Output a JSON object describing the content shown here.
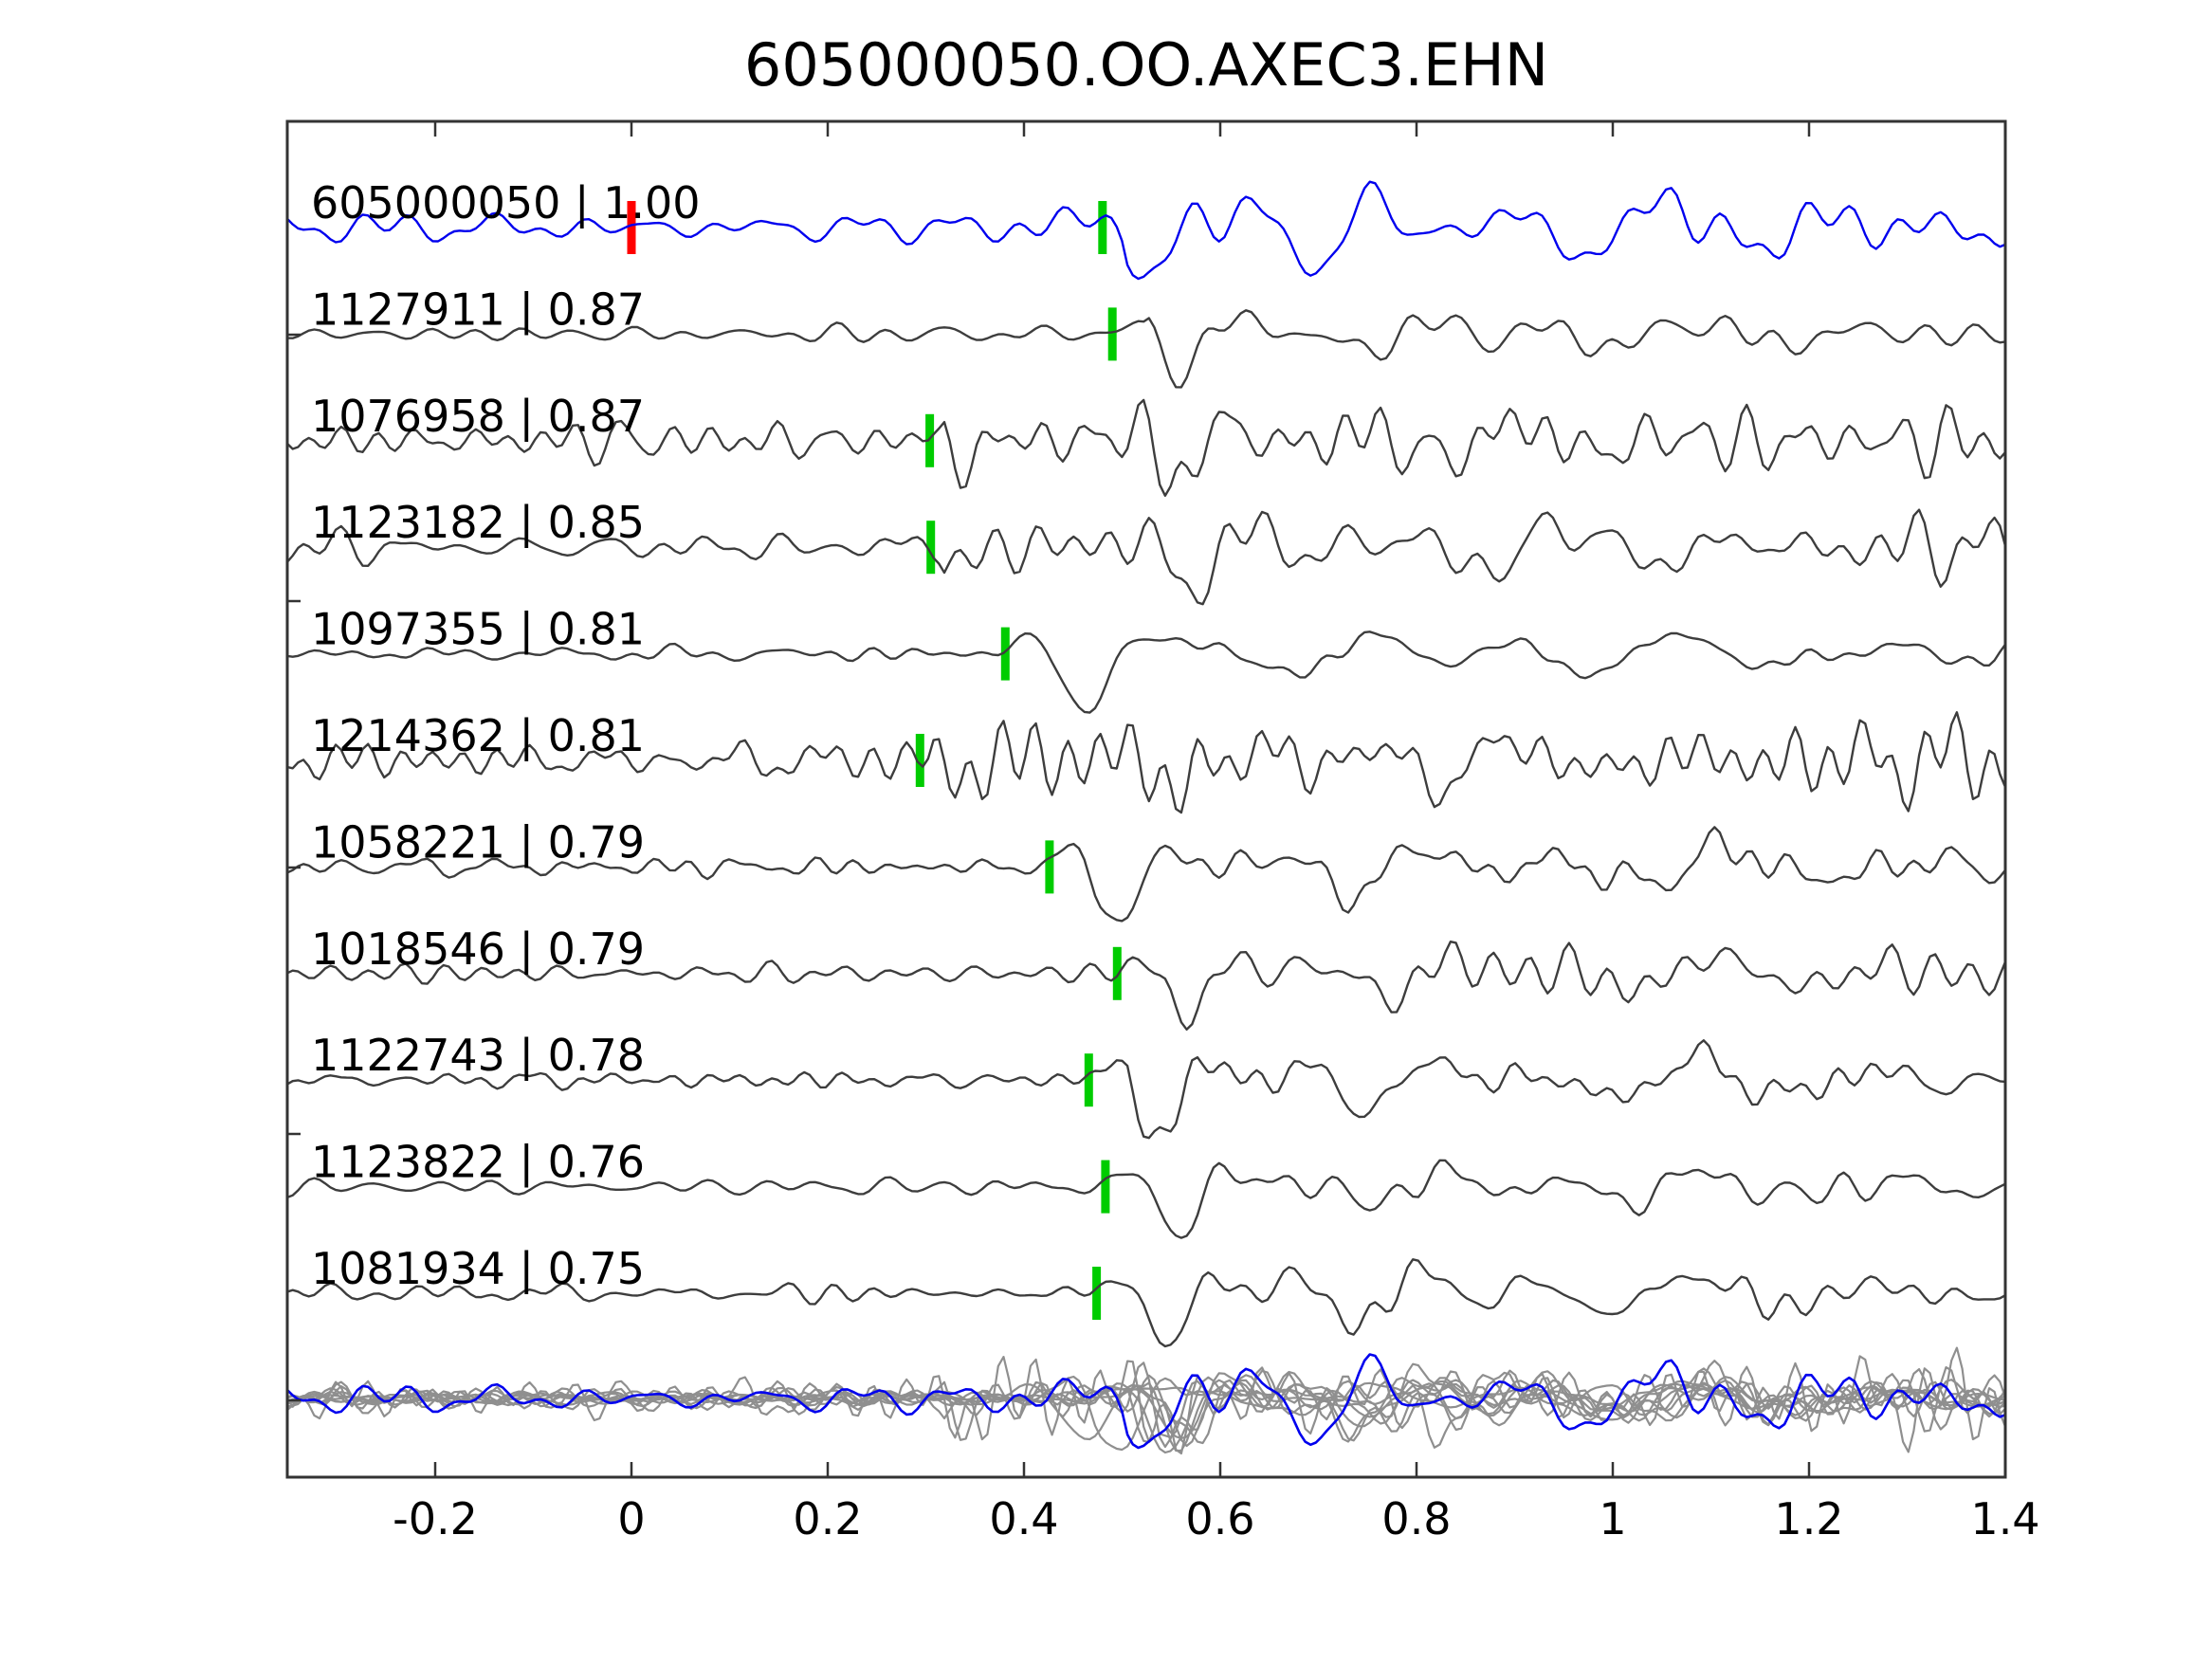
{
  "title": "605000050.OO.AXEC3.EHN",
  "chart_data": {
    "type": "line",
    "title": "605000050.OO.AXEC3.EHN",
    "xlabel": "",
    "ylabel": "",
    "xlim": [
      -0.35,
      1.4
    ],
    "grid": false,
    "legend": false,
    "xticks": [
      -0.2,
      0,
      0.2,
      0.4,
      0.6,
      0.8,
      1,
      1.2,
      1.4
    ],
    "xtick_labels": [
      "-0.2",
      "0",
      "0.2",
      "0.4",
      "0.6",
      "0.8",
      "1",
      "1.2",
      "1.4"
    ],
    "marker_colors": {
      "pick": "#00cc00",
      "template_origin": "#ff0000"
    },
    "frame_color": "#333333",
    "traces": [
      {
        "id": "605000050",
        "correlation": "1.00",
        "label": "605000050 | 1.00",
        "role": "template",
        "color": "#0000ee",
        "pick_time": 0.48,
        "origin_mark_time": 0.0,
        "seed": 101,
        "noise": 0.14,
        "arrivals": [
          [
            0.5,
            1.0,
            8.5,
            0.05
          ],
          [
            0.655,
            0.5,
            7,
            0.09
          ],
          [
            0.92,
            0.32,
            5.5,
            0.2
          ]
        ]
      },
      {
        "id": "1127911",
        "correlation": "0.87",
        "label": "1127911 | 0.87",
        "role": "detection",
        "color": "#3d3d3d",
        "pick_time": 0.49,
        "seed": 202,
        "noise": 0.16,
        "arrivals": [
          [
            0.525,
            1.0,
            8,
            0.055
          ],
          [
            0.7,
            0.55,
            6.5,
            0.1
          ],
          [
            0.95,
            0.35,
            5.5,
            0.2
          ]
        ]
      },
      {
        "id": "1076958",
        "correlation": "0.87",
        "label": "1076958 | 0.87",
        "role": "detection",
        "color": "#3d3d3d",
        "pick_time": 0.304,
        "seed": 303,
        "noise": 0.34,
        "arrivals": [
          [
            0.315,
            0.55,
            9,
            0.042
          ],
          [
            0.525,
            1.0,
            8,
            0.06
          ],
          [
            0.78,
            0.45,
            6,
            0.16
          ]
        ]
      },
      {
        "id": "1123182",
        "correlation": "0.85",
        "label": "1123182 | 0.85",
        "role": "detection",
        "color": "#3d3d3d",
        "pick_time": 0.305,
        "seed": 404,
        "noise": 0.3,
        "arrivals": [
          [
            0.315,
            0.6,
            9,
            0.042
          ],
          [
            0.535,
            1.0,
            7.5,
            0.06
          ],
          [
            0.82,
            0.5,
            5.5,
            0.18
          ]
        ]
      },
      {
        "id": "1097355",
        "correlation": "0.81",
        "label": "1097355 | 0.81",
        "role": "detection",
        "color": "#3d3d3d",
        "pick_time": 0.381,
        "seed": 505,
        "noise": 0.09,
        "arrivals": [
          [
            0.425,
            1.0,
            7,
            0.06
          ],
          [
            0.63,
            0.48,
            6,
            0.12
          ],
          [
            0.92,
            0.32,
            5,
            0.2
          ]
        ]
      },
      {
        "id": "1214362",
        "correlation": "0.81",
        "label": "1214362 | 0.81",
        "role": "detection",
        "color": "#3d3d3d",
        "pick_time": 0.294,
        "seed": 606,
        "noise": 0.38,
        "arrivals": [
          [
            0.3,
            0.62,
            9,
            0.045
          ],
          [
            0.525,
            1.0,
            7.5,
            0.06
          ],
          [
            0.78,
            0.52,
            6,
            0.17
          ]
        ]
      },
      {
        "id": "1058221",
        "correlation": "0.79",
        "label": "1058221 | 0.79",
        "role": "detection",
        "color": "#3d3d3d",
        "pick_time": 0.426,
        "seed": 707,
        "noise": 0.13,
        "arrivals": [
          [
            0.465,
            1.0,
            7.5,
            0.055
          ],
          [
            0.69,
            0.52,
            6,
            0.12
          ],
          [
            0.97,
            0.35,
            5,
            0.2
          ]
        ]
      },
      {
        "id": "1018546",
        "correlation": "0.79",
        "label": "1018546 | 0.79",
        "role": "detection",
        "color": "#3d3d3d",
        "pick_time": 0.495,
        "seed": 808,
        "noise": 0.17,
        "arrivals": [
          [
            0.535,
            1.0,
            8,
            0.05
          ],
          [
            0.73,
            0.55,
            6.5,
            0.1
          ],
          [
            0.97,
            0.4,
            5.5,
            0.2
          ]
        ]
      },
      {
        "id": "1122743",
        "correlation": "0.78",
        "label": "1122743 | 0.78",
        "role": "detection",
        "color": "#3d3d3d",
        "pick_time": 0.466,
        "seed": 909,
        "noise": 0.13,
        "arrivals": [
          [
            0.505,
            1.0,
            8,
            0.05
          ],
          [
            0.71,
            0.5,
            6.5,
            0.11
          ],
          [
            0.95,
            0.36,
            5.5,
            0.2
          ]
        ]
      },
      {
        "id": "1123822",
        "correlation": "0.76",
        "label": "1123822 | 0.76",
        "role": "detection",
        "color": "#3d3d3d",
        "pick_time": 0.483,
        "seed": 1010,
        "noise": 0.13,
        "arrivals": [
          [
            0.525,
            1.0,
            8,
            0.05
          ],
          [
            0.71,
            0.46,
            6.5,
            0.11
          ],
          [
            0.96,
            0.3,
            5.5,
            0.2
          ]
        ]
      },
      {
        "id": "1081934",
        "correlation": "0.75",
        "label": "1081934 | 0.75",
        "role": "detection",
        "color": "#3d3d3d",
        "pick_time": 0.474,
        "seed": 1111,
        "noise": 0.11,
        "arrivals": [
          [
            0.515,
            1.0,
            8,
            0.05
          ],
          [
            0.7,
            0.5,
            6.5,
            0.11
          ],
          [
            0.95,
            0.36,
            5.5,
            0.2
          ]
        ]
      }
    ],
    "overlay": {
      "description": "all traces overlaid at bottom row",
      "gray_color": "#8f8f8f",
      "template_color": "#0000ee"
    }
  }
}
